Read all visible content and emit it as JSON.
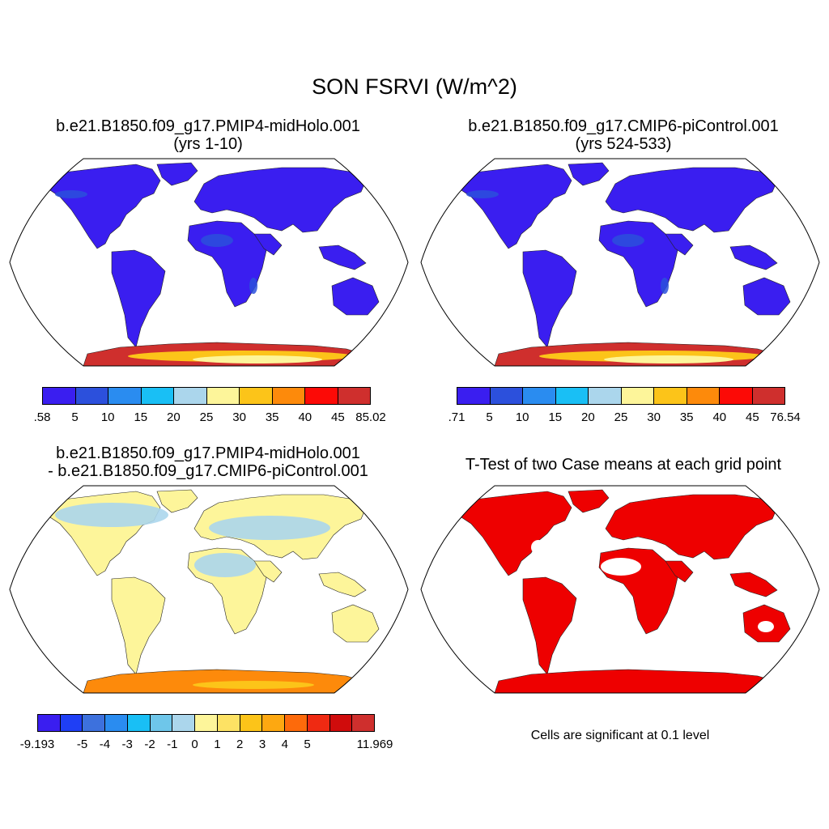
{
  "title": "SON FSRVI (W/m^2)",
  "panels": {
    "p1": {
      "title1": "b.e21.B1850.f09_g17.PMIP4-midHolo.001",
      "title2": "(yrs 1-10)"
    },
    "p2": {
      "title1": "b.e21.B1850.f09_g17.CMIP6-piControl.001",
      "title2": "(yrs 524-533)"
    },
    "p3": {
      "title1": "b.e21.B1850.f09_g17.PMIP4-midHolo.001",
      "title2": "- b.e21.B1850.f09_g17.CMIP6-piControl.001"
    },
    "p4": {
      "title1": "T-Test of two Case means at each grid point",
      "note": "Cells are significant at 0.1 level"
    }
  },
  "colorbars": {
    "cb1": {
      "labels": [
        ".58",
        "5",
        "10",
        "15",
        "20",
        "25",
        "30",
        "35",
        "40",
        "45",
        "85.02"
      ],
      "colors": [
        "#3a1ef0",
        "#2c50dc",
        "#2a8cf0",
        "#19bff5",
        "#abd6ec",
        "#fdf59a",
        "#fcc419",
        "#fd8a0b",
        "#fc0a06",
        "#cf2f2d"
      ]
    },
    "cb2": {
      "labels": [
        ".71",
        "5",
        "10",
        "15",
        "20",
        "25",
        "30",
        "35",
        "40",
        "45",
        "76.54"
      ],
      "colors": [
        "#3a1ef0",
        "#2c50dc",
        "#2a8cf0",
        "#19bff5",
        "#abd6ec",
        "#fdf59a",
        "#fcc419",
        "#fd8a0b",
        "#fc0a06",
        "#cf2f2d"
      ]
    },
    "cb3": {
      "labels": [
        "-9.193",
        "-5",
        "-4",
        "-3",
        "-2",
        "-1",
        "0",
        "1",
        "2",
        "3",
        "4",
        "5",
        "11.969"
      ],
      "colors": [
        "#3a1ef0",
        "#1f3ff5",
        "#3d71dd",
        "#2a8cf0",
        "#19bff5",
        "#6ec6ea",
        "#abd6ec",
        "#fdf59a",
        "#fde264",
        "#fcc419",
        "#fda811",
        "#fd6a0b",
        "#ef2a12",
        "#d00c0c",
        "#cf2f2d"
      ]
    }
  },
  "map_colors": {
    "land_base": [
      "#3a1ef0",
      "#3a1ef0",
      "#fdf59a",
      "#f3e6a0"
    ],
    "land_alt": [
      "#2c50dc",
      "#2c50dc",
      "#abd6ec",
      "#ff0000"
    ],
    "antarctica": [
      "#cf2f2d",
      "#fd8a0b",
      "#fcc419",
      "#fdf59a"
    ],
    "signif": "#ee0000"
  }
}
